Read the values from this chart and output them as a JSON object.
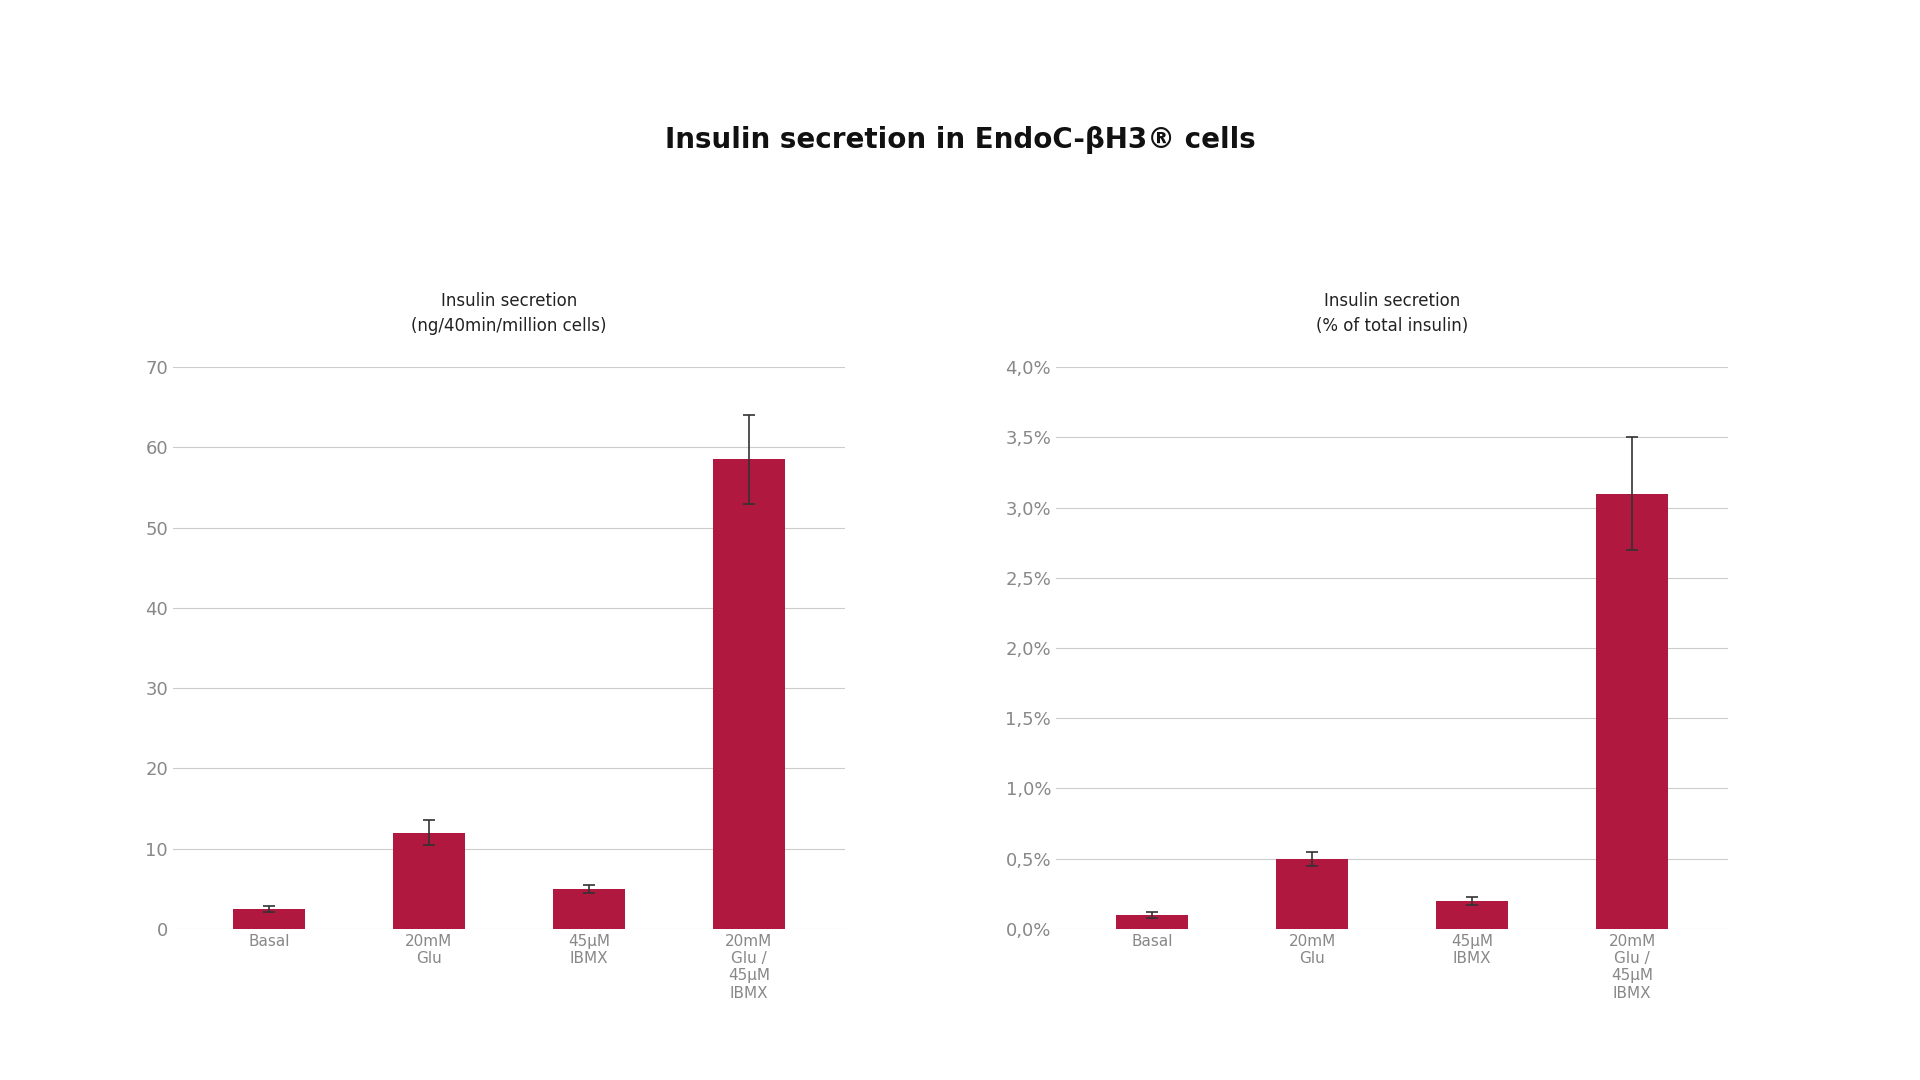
{
  "title": "Insulin secretion in EndoC-βH3® cells",
  "title_fontsize": 20,
  "title_fontweight": "bold",
  "background_color": "#ffffff",
  "left_chart": {
    "ylabel": "Insulin secretion\n(ng/40min/million cells)",
    "ylabel_fontsize": 12,
    "categories": [
      "Basal",
      "20mM\nGlu",
      "45μM\nIBMX",
      "20mM\nGlu /\n45μM\nIBMX"
    ],
    "values": [
      2.5,
      12.0,
      5.0,
      58.5
    ],
    "errors": [
      0.4,
      1.5,
      0.5,
      5.5
    ],
    "bar_color": "#B01840",
    "ylim": [
      0,
      70
    ],
    "yticks": [
      0,
      10,
      20,
      30,
      40,
      50,
      60,
      70
    ]
  },
  "right_chart": {
    "ylabel": "Insulin secretion\n(% of total insulin)",
    "ylabel_fontsize": 12,
    "categories": [
      "Basal",
      "20mM\nGlu",
      "45μM\nIBMX",
      "20mM\nGlu /\n45μM\nIBMX"
    ],
    "values": [
      0.001,
      0.005,
      0.002,
      0.031
    ],
    "errors": [
      0.0002,
      0.0005,
      0.0003,
      0.004
    ],
    "bar_color": "#B01840",
    "ylim": [
      0,
      0.04
    ],
    "ytick_values": [
      0.0,
      0.005,
      0.01,
      0.015,
      0.02,
      0.025,
      0.03,
      0.035,
      0.04
    ],
    "ytick_labels": [
      "0,0%",
      "0,5%",
      "1,0%",
      "1,5%",
      "2,0%",
      "2,5%",
      "3,0%",
      "3,5%",
      "4,0%"
    ]
  },
  "tick_color": "#888888",
  "tick_fontsize": 13,
  "category_fontsize": 11,
  "bar_width": 0.45,
  "grid_color": "#cccccc",
  "grid_linewidth": 0.8
}
